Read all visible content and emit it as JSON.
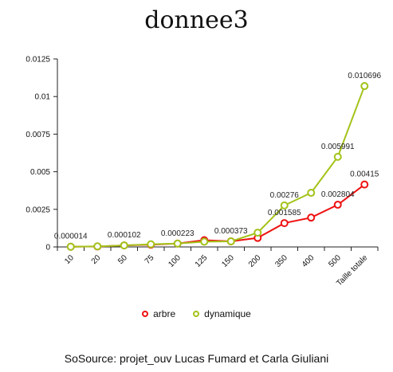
{
  "chart_data": {
    "type": "line",
    "title": "donnee3",
    "categories": [
      "10",
      "20",
      "50",
      "75",
      "100",
      "125",
      "150",
      "200",
      "350",
      "400",
      "500",
      "Taille totale"
    ],
    "ylim": [
      0,
      0.0125
    ],
    "yticks": [
      "0",
      "0.0025",
      "0.005",
      "0.0075",
      "0.01",
      "0.0125"
    ],
    "series": [
      {
        "name": "arbre",
        "color": "#ee1111",
        "values": [
          1.4e-05,
          3e-05,
          0.000102,
          0.00015,
          0.000223,
          0.00045,
          0.000373,
          0.0006,
          0.001585,
          0.00195,
          0.002804,
          0.00415
        ],
        "labels": [
          null,
          null,
          null,
          null,
          null,
          null,
          null,
          null,
          "0.001585",
          null,
          "0.002804",
          "0.00415"
        ]
      },
      {
        "name": "dynamique",
        "color": "#a3c31a",
        "values": [
          1.4e-05,
          4e-05,
          0.000102,
          0.00018,
          0.000223,
          0.00035,
          0.000373,
          0.00095,
          0.00276,
          0.0036,
          0.005991,
          0.010696
        ],
        "labels": [
          "0.000014",
          null,
          "0.000102",
          null,
          "0.000223",
          null,
          "0.000373",
          null,
          "0.00276",
          null,
          "0.005991",
          "0.010696"
        ]
      }
    ]
  },
  "legend": [
    {
      "label": "arbre",
      "color": "#ee1111"
    },
    {
      "label": "dynamique",
      "color": "#a3c31a"
    }
  ],
  "source": "SoSource: projet_ouv Lucas Fumard et Carla Giuliani"
}
